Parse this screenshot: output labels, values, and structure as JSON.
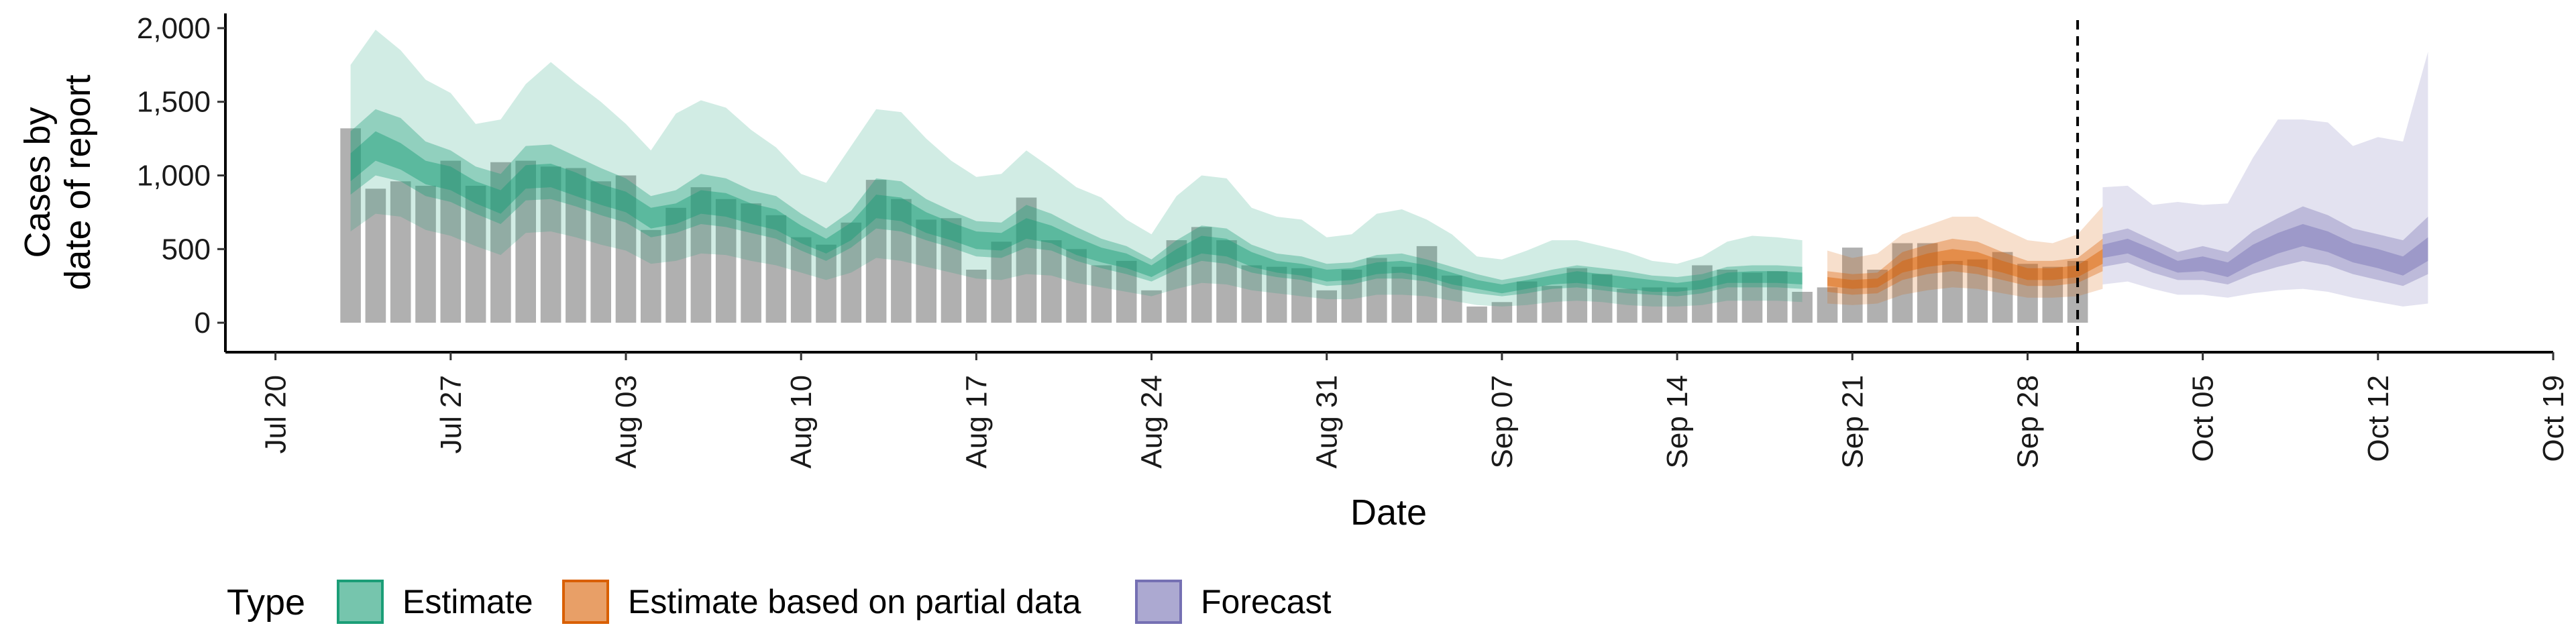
{
  "chart_data": {
    "type": "area",
    "xlabel": "Date",
    "ylabel_lines": [
      "Cases by",
      "date of report"
    ],
    "ylim": [
      -200,
      2100
    ],
    "yticks": [
      0,
      500,
      1000,
      1500,
      2000
    ],
    "ytick_labels": [
      "0",
      "500",
      "1,000",
      "1,500",
      "2,000"
    ],
    "xtick_dates": [
      "2020-07-20",
      "2020-07-27",
      "2020-08-03",
      "2020-08-10",
      "2020-08-17",
      "2020-08-24",
      "2020-08-31",
      "2020-09-07",
      "2020-09-14",
      "2020-09-21",
      "2020-09-28",
      "2020-10-05",
      "2020-10-12",
      "2020-10-19"
    ],
    "xtick_labels": [
      "Jul 20",
      "Jul 27",
      "Aug 03",
      "Aug 10",
      "Aug 17",
      "Aug 24",
      "Aug 31",
      "Sep 07",
      "Sep 14",
      "Sep 21",
      "Sep 28",
      "Oct 05",
      "Oct 12",
      "Oct 19"
    ],
    "xlim": [
      "2020-07-18",
      "2020-10-19"
    ],
    "forecast_start_line": "2020-09-30",
    "colors": {
      "estimate": "#1b9e77",
      "partial": "#d95f02",
      "forecast": "#7570b3",
      "bars": "#b0b0b0",
      "axis": "#000000"
    },
    "legend": {
      "title": "Type",
      "items": [
        {
          "label": "Estimate",
          "color": "#1b9e77"
        },
        {
          "label": "Estimate based on partial data",
          "color": "#d95f02"
        },
        {
          "label": "Forecast",
          "color": "#7570b3"
        }
      ]
    },
    "bars": {
      "start_date": "2020-07-23",
      "values": [
        1320,
        910,
        960,
        930,
        1100,
        930,
        1090,
        1100,
        1060,
        1050,
        960,
        1000,
        630,
        780,
        920,
        840,
        810,
        730,
        580,
        530,
        680,
        970,
        840,
        700,
        710,
        360,
        550,
        850,
        560,
        500,
        390,
        420,
        220,
        560,
        650,
        560,
        390,
        380,
        370,
        220,
        360,
        440,
        380,
        520,
        320,
        110,
        140,
        280,
        250,
        370,
        330,
        230,
        240,
        240,
        390,
        360,
        340,
        350,
        210,
        240,
        510,
        360,
        540,
        540,
        420,
        430,
        480,
        400,
        380,
        420
      ]
    },
    "series": [
      {
        "name": "Estimate",
        "start_date": "2020-07-23",
        "median": [
          1050,
          1200,
          1130,
          1020,
          980,
          890,
          820,
          990,
          1000,
          940,
          870,
          820,
          710,
          740,
          820,
          800,
          740,
          700,
          600,
          520,
          620,
          790,
          770,
          680,
          620,
          560,
          550,
          640,
          600,
          520,
          460,
          420,
          350,
          450,
          530,
          510,
          430,
          380,
          360,
          320,
          330,
          370,
          380,
          350,
          300,
          260,
          230,
          260,
          290,
          310,
          290,
          270,
          250,
          240,
          260,
          300,
          310,
          310,
          300
        ],
        "lo20": [
          960,
          1100,
          1040,
          940,
          900,
          810,
          740,
          910,
          920,
          860,
          800,
          750,
          640,
          670,
          740,
          720,
          670,
          630,
          540,
          470,
          560,
          710,
          690,
          610,
          560,
          500,
          490,
          570,
          540,
          460,
          410,
          370,
          310,
          400,
          470,
          450,
          380,
          340,
          320,
          280,
          290,
          330,
          340,
          310,
          260,
          230,
          200,
          230,
          260,
          270,
          250,
          230,
          210,
          210,
          230,
          270,
          270,
          270,
          260
        ],
        "hi20": [
          1150,
          1300,
          1220,
          1100,
          1060,
          960,
          900,
          1070,
          1080,
          1020,
          940,
          890,
          780,
          810,
          900,
          880,
          810,
          770,
          660,
          570,
          680,
          870,
          850,
          750,
          680,
          620,
          610,
          710,
          660,
          580,
          510,
          470,
          390,
          500,
          590,
          570,
          480,
          420,
          400,
          360,
          370,
          410,
          420,
          390,
          340,
          290,
          260,
          290,
          320,
          350,
          330,
          310,
          290,
          270,
          290,
          340,
          350,
          350,
          340
        ],
        "lo50": [
          870,
          1000,
          960,
          860,
          820,
          740,
          670,
          830,
          840,
          790,
          730,
          680,
          580,
          610,
          670,
          650,
          610,
          570,
          490,
          420,
          510,
          640,
          620,
          560,
          510,
          450,
          440,
          510,
          490,
          420,
          370,
          330,
          280,
          360,
          420,
          400,
          340,
          310,
          290,
          250,
          260,
          300,
          300,
          280,
          230,
          200,
          180,
          200,
          230,
          240,
          220,
          200,
          190,
          180,
          200,
          240,
          240,
          240,
          230
        ],
        "hi50": [
          1300,
          1450,
          1390,
          1230,
          1170,
          1060,
          1010,
          1200,
          1210,
          1130,
          1050,
          980,
          860,
          900,
          1010,
          980,
          900,
          860,
          740,
          640,
          760,
          980,
          960,
          840,
          760,
          690,
          680,
          800,
          740,
          650,
          570,
          520,
          430,
          560,
          660,
          640,
          530,
          470,
          450,
          400,
          410,
          460,
          470,
          430,
          380,
          330,
          290,
          320,
          360,
          390,
          370,
          350,
          320,
          310,
          330,
          380,
          390,
          390,
          380
        ],
        "lo90": [
          620,
          740,
          720,
          630,
          590,
          520,
          460,
          610,
          620,
          580,
          530,
          490,
          400,
          420,
          470,
          460,
          420,
          390,
          340,
          290,
          340,
          440,
          420,
          380,
          340,
          300,
          290,
          330,
          320,
          270,
          240,
          210,
          180,
          230,
          270,
          260,
          220,
          200,
          180,
          160,
          160,
          190,
          190,
          180,
          150,
          120,
          110,
          120,
          140,
          150,
          140,
          120,
          110,
          110,
          120,
          150,
          150,
          150,
          140
        ],
        "hi90": [
          1750,
          1990,
          1850,
          1650,
          1560,
          1350,
          1380,
          1620,
          1770,
          1630,
          1500,
          1350,
          1170,
          1420,
          1510,
          1460,
          1310,
          1190,
          1010,
          950,
          1200,
          1450,
          1430,
          1250,
          1100,
          990,
          1010,
          1170,
          1050,
          920,
          850,
          700,
          600,
          860,
          1000,
          980,
          780,
          720,
          700,
          580,
          600,
          740,
          770,
          700,
          600,
          450,
          430,
          490,
          560,
          560,
          520,
          480,
          420,
          400,
          450,
          550,
          590,
          580,
          560
        ]
      },
      {
        "name": "Estimate based on partial data",
        "start_date": "2020-09-20",
        "median": [
          280,
          260,
          270,
          380,
          420,
          450,
          430,
          380,
          330,
          330,
          350,
          450
        ],
        "lo20": [
          250,
          230,
          240,
          340,
          380,
          400,
          380,
          340,
          290,
          290,
          310,
          400
        ],
        "hi20": [
          310,
          290,
          300,
          420,
          470,
          500,
          480,
          420,
          370,
          370,
          390,
          500
        ],
        "lo50": [
          210,
          190,
          200,
          290,
          330,
          350,
          330,
          290,
          250,
          250,
          270,
          350
        ],
        "hi50": [
          350,
          330,
          340,
          480,
          530,
          570,
          550,
          480,
          420,
          420,
          440,
          570
        ],
        "lo90": [
          130,
          120,
          130,
          190,
          220,
          240,
          230,
          200,
          170,
          170,
          180,
          230
        ],
        "hi90": [
          490,
          440,
          470,
          600,
          660,
          720,
          720,
          640,
          560,
          540,
          600,
          790
        ]
      },
      {
        "name": "Forecast",
        "start_date": "2020-10-01",
        "median": [
          480,
          520,
          450,
          380,
          400,
          360,
          470,
          540,
          600,
          550,
          470,
          430,
          380,
          500
        ],
        "lo20": [
          440,
          470,
          400,
          340,
          350,
          310,
          400,
          470,
          520,
          480,
          410,
          370,
          320,
          420
        ],
        "hi20": [
          530,
          570,
          500,
          420,
          450,
          410,
          530,
          610,
          670,
          620,
          540,
          500,
          450,
          580
        ],
        "lo50": [
          380,
          410,
          340,
          290,
          290,
          260,
          330,
          380,
          420,
          390,
          330,
          290,
          250,
          330
        ],
        "hi50": [
          600,
          640,
          560,
          480,
          520,
          480,
          620,
          710,
          790,
          730,
          640,
          600,
          560,
          720
        ],
        "lo90": [
          260,
          280,
          230,
          190,
          190,
          170,
          200,
          220,
          230,
          210,
          170,
          140,
          110,
          130
        ],
        "hi90": [
          920,
          930,
          800,
          820,
          800,
          810,
          1120,
          1380,
          1380,
          1360,
          1200,
          1260,
          1230,
          1840
        ]
      }
    ]
  }
}
